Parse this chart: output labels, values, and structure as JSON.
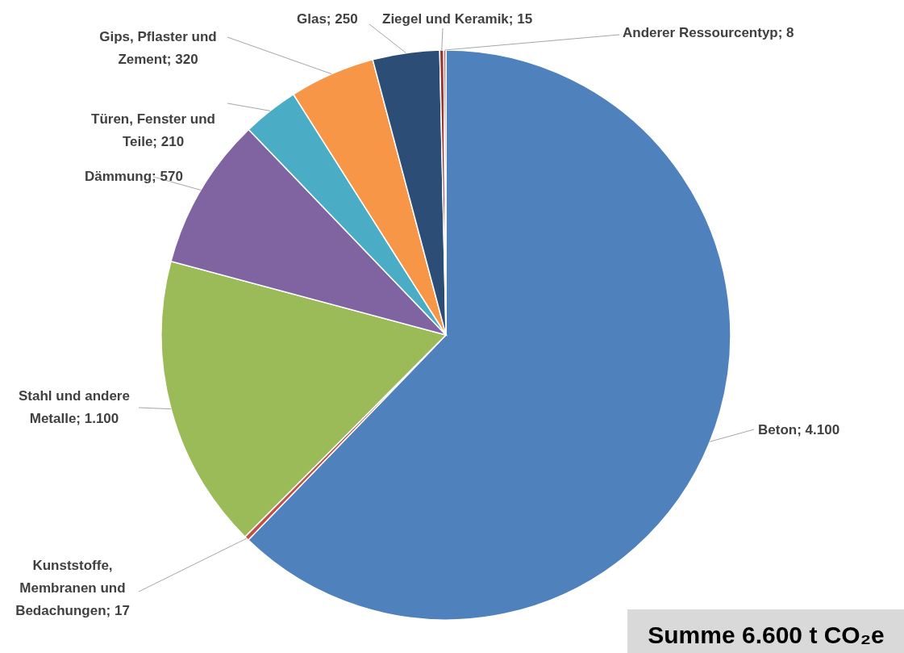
{
  "chart_data": {
    "type": "pie",
    "categories": [
      "Beton",
      "Kunststoffe, Membranen und Bedachungen",
      "Stahl und andere Metalle",
      "Dämmung",
      "Türen, Fenster und Teile",
      "Gips, Pflaster und Zement",
      "Glas",
      "Ziegel und Keramik",
      "Anderer Ressourcentyp"
    ],
    "values": [
      4100,
      17,
      1100,
      570,
      210,
      320,
      250,
      15,
      8
    ],
    "value_labels": [
      "4.100",
      "17",
      "1.100",
      "570",
      "210",
      "320",
      "250",
      "15",
      "8"
    ],
    "colors": [
      "#4f81bd",
      "#c0504d",
      "#9bbb59",
      "#8064a2",
      "#4bacc6",
      "#f79646",
      "#2c4d75",
      "#943634",
      "#c0504d"
    ],
    "annotations": [
      "Summe 6.600 t CO₂e"
    ]
  }
}
